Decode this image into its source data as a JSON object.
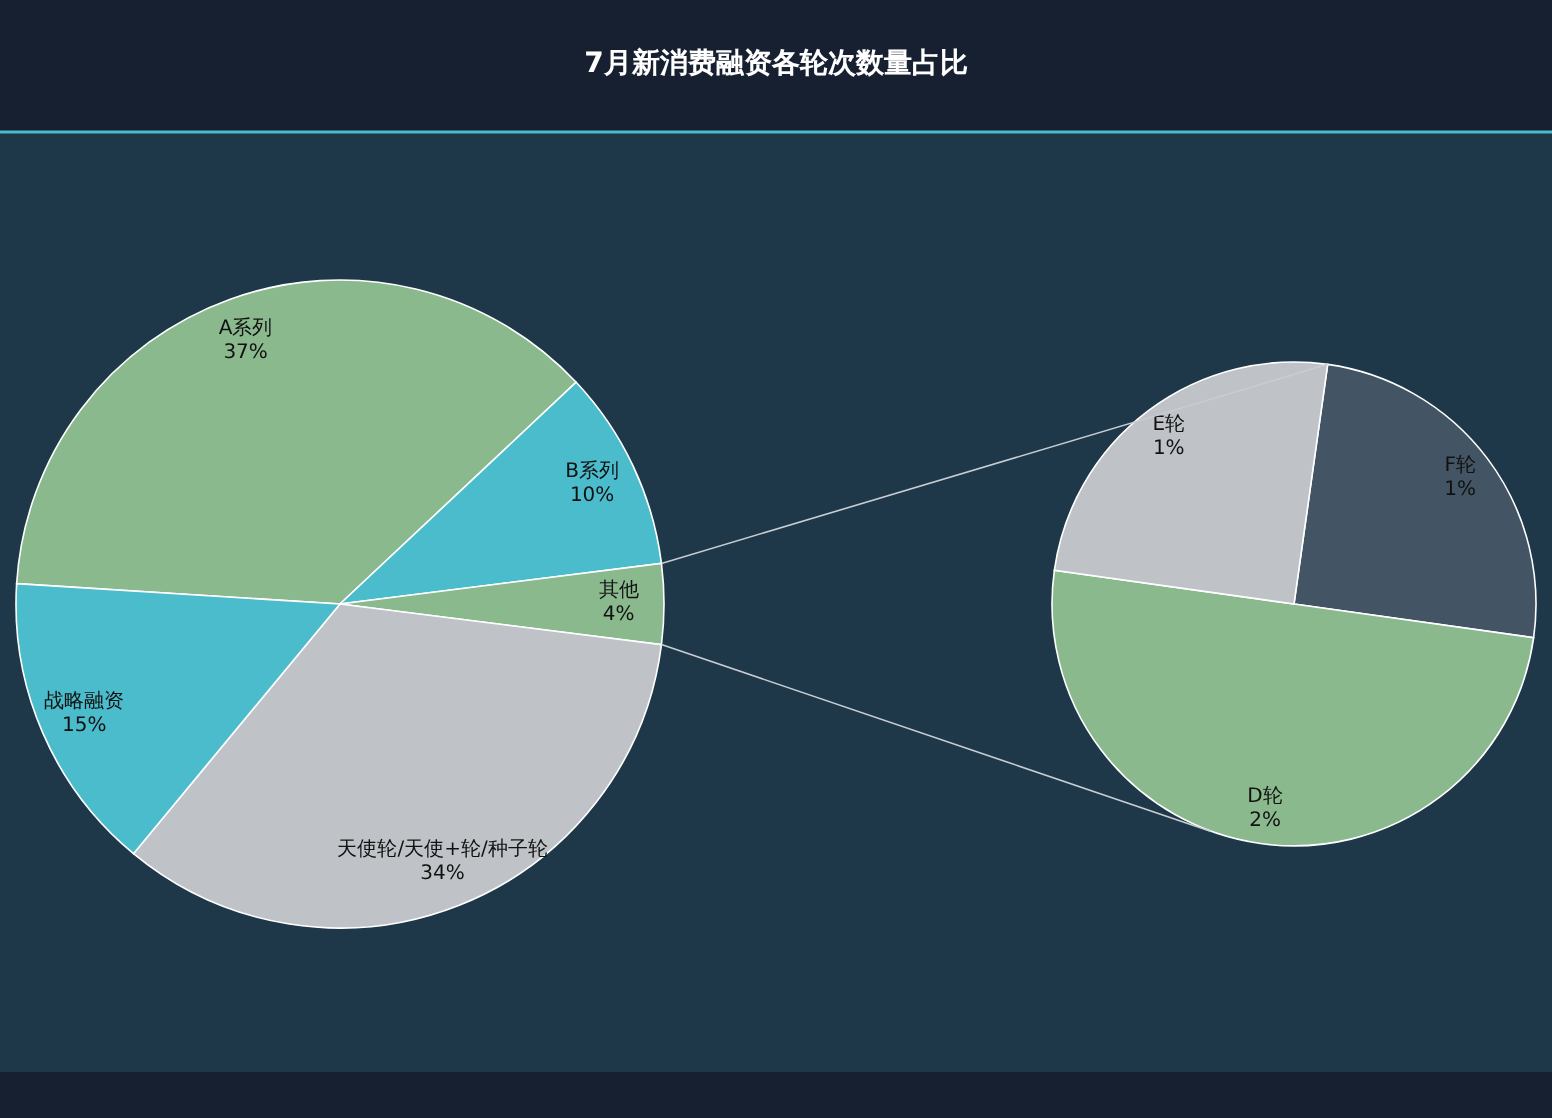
{
  "chart_data": [
    {
      "type": "pie",
      "title": "7月新消费融资各轮次数量占比",
      "categories": [
        "A系列",
        "B系列",
        "其他",
        "天使轮/天使+轮/种子轮",
        "战略融资"
      ],
      "values": [
        37,
        10,
        4,
        34,
        15
      ],
      "value_labels": [
        "37%",
        "10%",
        "4%",
        "34%",
        "15%"
      ],
      "colors": [
        "#8ab98e",
        "#4bbccb",
        "#8ab98e",
        "#bfc3c7",
        "#4bbccb"
      ]
    },
    {
      "type": "pie",
      "categories": [
        "F轮",
        "D轮",
        "E轮"
      ],
      "values": [
        1,
        2,
        1
      ],
      "value_labels": [
        "1%",
        "2%",
        "1%"
      ],
      "colors": [
        "#435464",
        "#8ab98e",
        "#bfc3c7"
      ]
    }
  ]
}
